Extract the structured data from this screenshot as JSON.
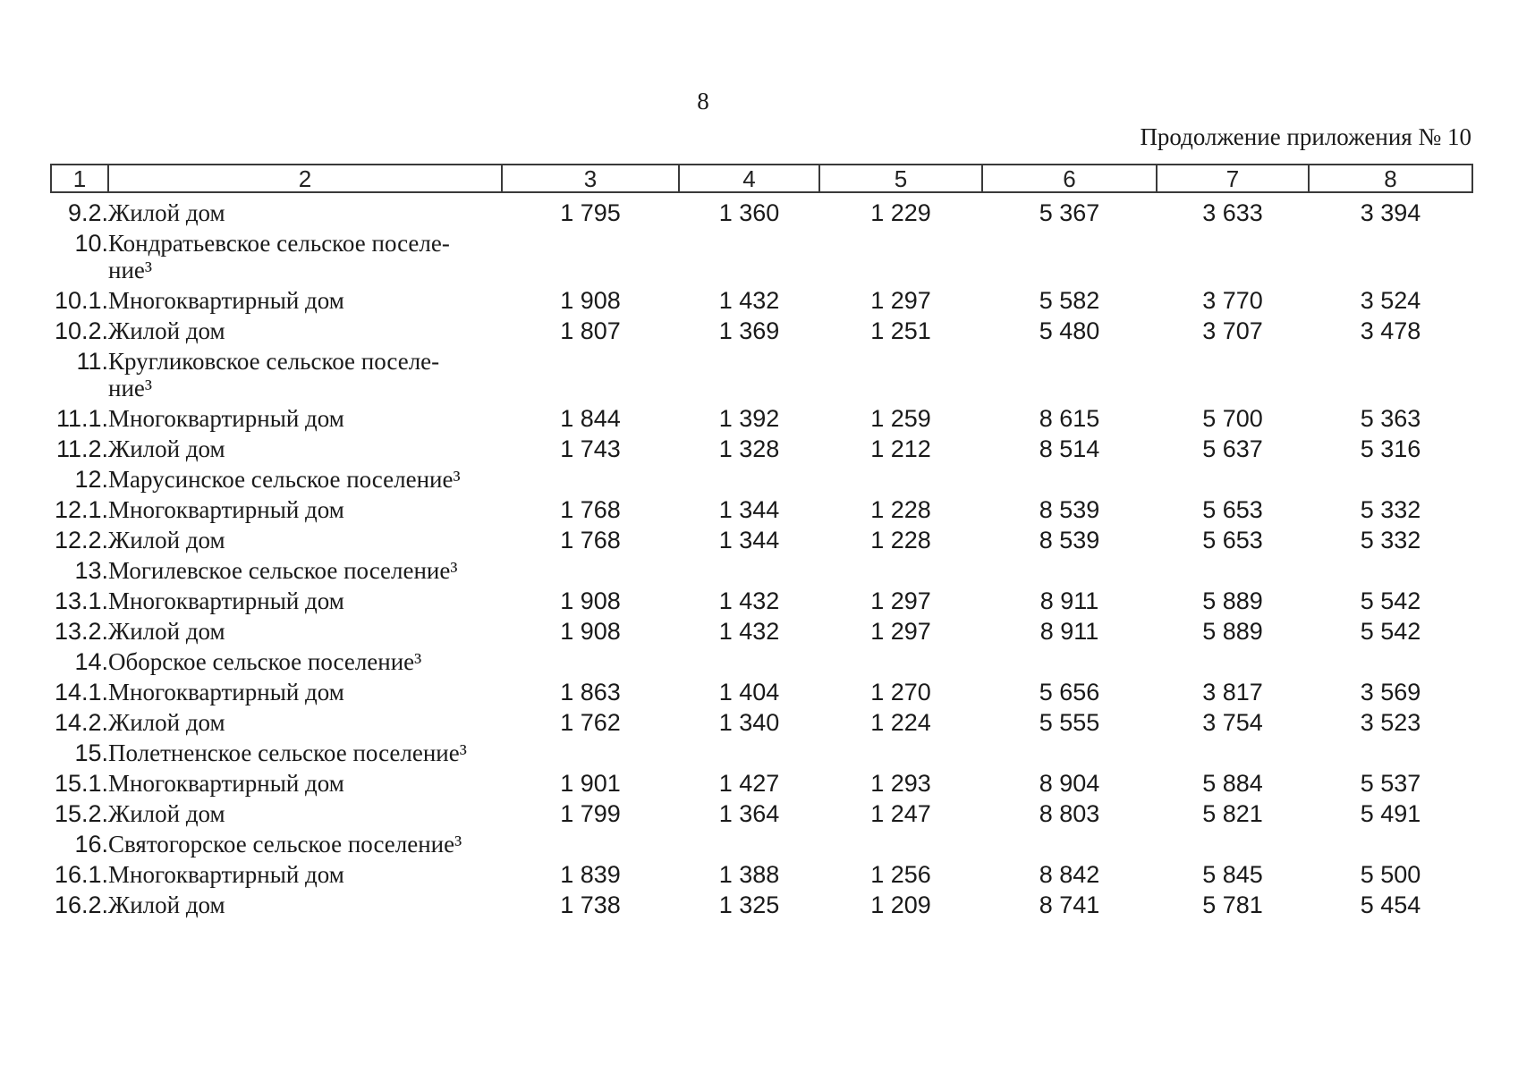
{
  "page": {
    "number": "8",
    "continuation": "Продолжение приложения № 10"
  },
  "table": {
    "header": [
      "1",
      "2",
      "3",
      "4",
      "5",
      "6",
      "7",
      "8"
    ],
    "rows": [
      {
        "num": "9.2.",
        "name": "Жилой дом",
        "values": [
          "1 795",
          "1 360",
          "1 229",
          "5 367",
          "3 633",
          "3 394"
        ]
      },
      {
        "num": "10.",
        "name": "Кондратьевское сельское поселе-\nние³",
        "values": [
          "",
          "",
          "",
          "",
          "",
          ""
        ]
      },
      {
        "num": "10.1.",
        "name": "Многоквартирный дом",
        "values": [
          "1 908",
          "1 432",
          "1 297",
          "5 582",
          "3 770",
          "3 524"
        ]
      },
      {
        "num": "10.2.",
        "name": "Жилой дом",
        "values": [
          "1 807",
          "1 369",
          "1 251",
          "5 480",
          "3 707",
          "3 478"
        ]
      },
      {
        "num": "11.",
        "name": "Кругликовское сельское поселе-\nние³",
        "values": [
          "",
          "",
          "",
          "",
          "",
          ""
        ]
      },
      {
        "num": "11.1.",
        "name": "Многоквартирный дом",
        "values": [
          "1 844",
          "1 392",
          "1 259",
          "8 615",
          "5 700",
          "5 363"
        ]
      },
      {
        "num": "11.2.",
        "name": "Жилой дом",
        "values": [
          "1 743",
          "1 328",
          "1 212",
          "8 514",
          "5 637",
          "5 316"
        ]
      },
      {
        "num": "12.",
        "name": "Марусинское сельское поселение³",
        "values": [
          "",
          "",
          "",
          "",
          "",
          ""
        ]
      },
      {
        "num": "12.1.",
        "name": "Многоквартирный дом",
        "values": [
          "1 768",
          "1 344",
          "1 228",
          "8 539",
          "5 653",
          "5 332"
        ]
      },
      {
        "num": "12.2.",
        "name": "Жилой дом",
        "values": [
          "1 768",
          "1 344",
          "1 228",
          "8 539",
          "5 653",
          "5 332"
        ]
      },
      {
        "num": "13.",
        "name": "Могилевское сельское поселение³",
        "values": [
          "",
          "",
          "",
          "",
          "",
          ""
        ]
      },
      {
        "num": "13.1.",
        "name": "Многоквартирный дом",
        "values": [
          "1 908",
          "1 432",
          "1 297",
          "8 911",
          "5 889",
          "5 542"
        ]
      },
      {
        "num": "13.2.",
        "name": "Жилой дом",
        "values": [
          "1 908",
          "1 432",
          "1 297",
          "8 911",
          "5 889",
          "5 542"
        ]
      },
      {
        "num": "14.",
        "name": "Оборское сельское поселение³",
        "values": [
          "",
          "",
          "",
          "",
          "",
          ""
        ]
      },
      {
        "num": "14.1.",
        "name": "Многоквартирный дом",
        "values": [
          "1 863",
          "1 404",
          "1 270",
          "5 656",
          "3 817",
          "3 569"
        ]
      },
      {
        "num": "14.2.",
        "name": "Жилой дом",
        "values": [
          "1 762",
          "1 340",
          "1 224",
          "5 555",
          "3 754",
          "3 523"
        ]
      },
      {
        "num": "15.",
        "name": "Полетненское сельское поселение³",
        "values": [
          "",
          "",
          "",
          "",
          "",
          ""
        ]
      },
      {
        "num": "15.1.",
        "name": "Многоквартирный дом",
        "values": [
          "1 901",
          "1 427",
          "1 293",
          "8 904",
          "5 884",
          "5 537"
        ]
      },
      {
        "num": "15.2.",
        "name": "Жилой дом",
        "values": [
          "1 799",
          "1 364",
          "1 247",
          "8 803",
          "5 821",
          "5 491"
        ]
      },
      {
        "num": "16.",
        "name": "Святогорское сельское поселение³",
        "values": [
          "",
          "",
          "",
          "",
          "",
          ""
        ]
      },
      {
        "num": "16.1.",
        "name": "Многоквартирный дом",
        "values": [
          "1 839",
          "1 388",
          "1 256",
          "8 842",
          "5 845",
          "5 500"
        ]
      },
      {
        "num": "16.2.",
        "name": "Жилой дом",
        "values": [
          "1 738",
          "1 325",
          "1 209",
          "8 741",
          "5 781",
          "5 454"
        ]
      }
    ]
  }
}
